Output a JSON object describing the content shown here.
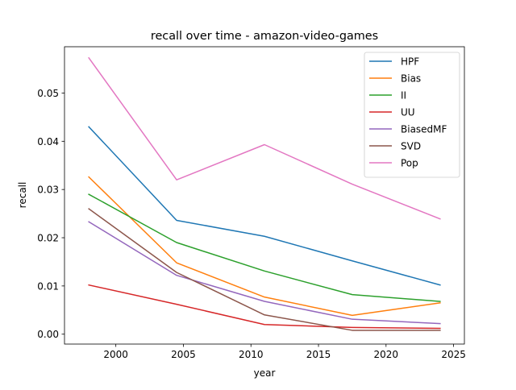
{
  "chart_data": {
    "type": "line",
    "title": "recall over time - amazon-video-games",
    "xlabel": "year",
    "ylabel": "recall",
    "xlim": [
      1996.2,
      2025.8
    ],
    "ylim": [
      -0.00205,
      0.0596
    ],
    "x_ticks": [
      2000,
      2005,
      2010,
      2015,
      2020,
      2025
    ],
    "x_tick_labels": [
      "2000",
      "2005",
      "2010",
      "2015",
      "2020",
      "2025"
    ],
    "y_ticks": [
      0.0,
      0.01,
      0.02,
      0.03,
      0.04,
      0.05
    ],
    "y_tick_labels": [
      "0.00",
      "0.01",
      "0.02",
      "0.03",
      "0.04",
      "0.05"
    ],
    "grid": false,
    "legend_position": "top-right",
    "x": [
      1998,
      2004.5,
      2011,
      2017.5,
      2024
    ],
    "series": [
      {
        "name": "HPF",
        "color": "#1f77b4",
        "values": [
          0.043,
          0.0236,
          0.0203,
          0.0152,
          0.0102
        ]
      },
      {
        "name": "Bias",
        "color": "#ff7f0e",
        "values": [
          0.0326,
          0.0148,
          0.0077,
          0.0039,
          0.0065
        ]
      },
      {
        "name": "II",
        "color": "#2ca02c",
        "values": [
          0.029,
          0.019,
          0.0131,
          0.0082,
          0.0068
        ]
      },
      {
        "name": "UU",
        "color": "#d62728",
        "values": [
          0.0102,
          0.0062,
          0.002,
          0.0014,
          0.0012
        ]
      },
      {
        "name": "BiasedMF",
        "color": "#9467bd",
        "values": [
          0.0233,
          0.0122,
          0.0068,
          0.0031,
          0.0022
        ]
      },
      {
        "name": "SVD",
        "color": "#8c564b",
        "values": [
          0.026,
          0.0128,
          0.004,
          0.0008,
          0.0008
        ]
      },
      {
        "name": "Pop",
        "color": "#e377c2",
        "values": [
          0.0573,
          0.032,
          0.0393,
          0.0311,
          0.0239
        ]
      }
    ]
  }
}
